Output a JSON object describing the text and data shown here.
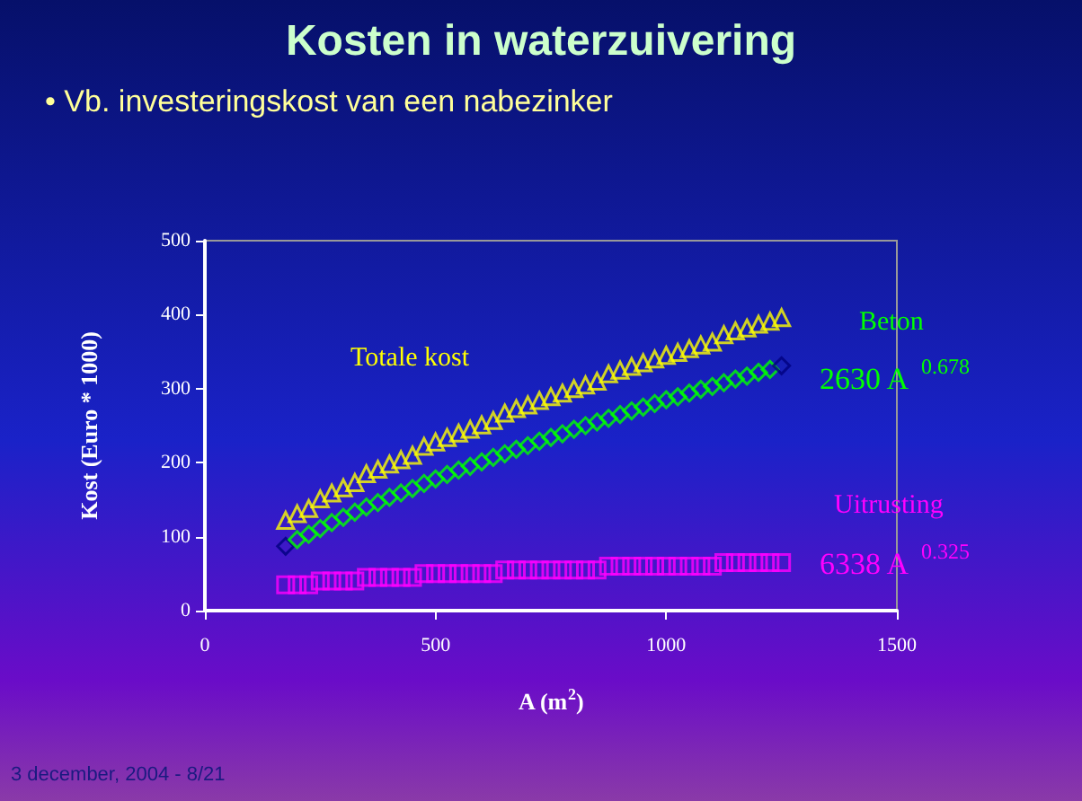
{
  "chart_data": {
    "type": "scatter",
    "title": "Kosten in waterzuivering",
    "subtitle": "• Vb. investeringskost van een nabezinker",
    "xlabel": "A (m$^{2}$)",
    "ylabel": "Kost (Euro * 1000)",
    "annotations": [
      "2630 A$^{0.678}$",
      "6338 A$^{0.325}$",
      "3 december, 2004 - 8/21"
    ],
    "x": [
      175,
      200,
      225,
      250,
      275,
      300,
      325,
      350,
      375,
      400,
      425,
      450,
      475,
      500,
      525,
      550,
      575,
      600,
      625,
      650,
      675,
      700,
      725,
      750,
      775,
      800,
      825,
      850,
      875,
      900,
      925,
      950,
      975,
      1000,
      1025,
      1050,
      1075,
      1100,
      1125,
      1150,
      1175,
      1200,
      1225,
      1250
    ],
    "series": [
      {
        "name": "Totale kost",
        "color": "#ffff00",
        "marker": "triangle",
        "values": [
          122,
          131,
          138,
          151,
          159,
          166,
          173,
          185,
          191,
          198,
          204,
          210,
          222,
          228,
          234,
          240,
          245,
          251,
          257,
          267,
          273,
          278,
          284,
          289,
          294,
          300,
          305,
          310,
          320,
          325,
          330,
          335,
          340,
          345,
          349,
          354,
          359,
          363,
          373,
          378,
          382,
          387,
          391,
          396
        ]
      },
      {
        "name": "Beton",
        "color": "#00ff00",
        "marker": "diamond",
        "colors": [
          "#000080",
          "#00ff00",
          "#00ff00",
          "#00ff00",
          "#00ff00",
          "#00ff00",
          "#00ff00",
          "#00ff00",
          "#00ff00",
          "#00ff00",
          "#00ff00",
          "#00ff00",
          "#00ff00",
          "#00ff00",
          "#00ff00",
          "#00ff00",
          "#00ff00",
          "#00ff00",
          "#00ff00",
          "#00ff00",
          "#00ff00",
          "#00ff00",
          "#00ff00",
          "#00ff00",
          "#00ff00",
          "#00ff00",
          "#00ff00",
          "#00ff00",
          "#00ff00",
          "#00ff00",
          "#00ff00",
          "#00ff00",
          "#00ff00",
          "#00ff00",
          "#00ff00",
          "#00ff00",
          "#00ff00",
          "#00ff00",
          "#00ff00",
          "#00ff00",
          "#00ff00",
          "#00ff00",
          "#00ff00",
          "#000080"
        ],
        "values": [
          87,
          96,
          103,
          111,
          119,
          126,
          133,
          140,
          146,
          153,
          159,
          165,
          172,
          178,
          184,
          190,
          195,
          201,
          207,
          212,
          218,
          223,
          229,
          234,
          239,
          245,
          250,
          255,
          260,
          265,
          270,
          275,
          280,
          285,
          289,
          294,
          299,
          303,
          308,
          313,
          317,
          322,
          326,
          331
        ]
      },
      {
        "name": "Uitrusting",
        "color": "#ff00ff",
        "marker": "square",
        "values": [
          35,
          35,
          35,
          40,
          40,
          40,
          40,
          45,
          45,
          45,
          45,
          45,
          50,
          50,
          50,
          50,
          50,
          50,
          50,
          55,
          55,
          55,
          55,
          55,
          55,
          55,
          55,
          55,
          60,
          60,
          60,
          60,
          60,
          60,
          60,
          60,
          60,
          60,
          65,
          65,
          65,
          65,
          65,
          65
        ]
      }
    ],
    "xlim": [
      0,
      1500
    ],
    "xticks": [
      0,
      500,
      1000,
      1500
    ],
    "ylim": [
      0,
      500
    ],
    "yticks": [
      0,
      100,
      200,
      300,
      400,
      500
    ],
    "grid": false,
    "legend": false
  }
}
